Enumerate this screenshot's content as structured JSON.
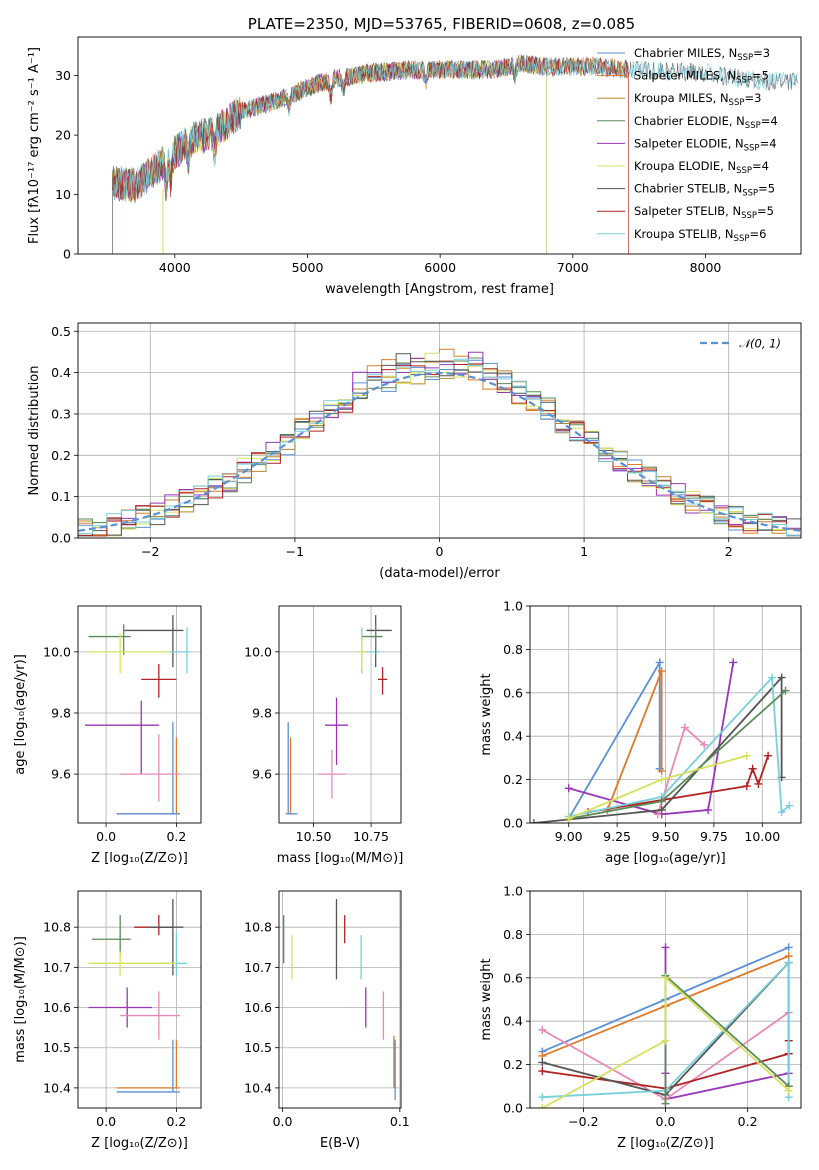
{
  "chart_data": [
    {
      "id": "spectrum",
      "type": "line",
      "title": "PLATE=2350, MJD=53765, FIBERID=0608, z=0.085",
      "xlabel": "wavelength [Angstrom, rest frame]",
      "ylabel": "Flux [fλ10⁻¹⁷ erg cm⁻² s⁻¹ A⁻¹]",
      "xlim": [
        3270,
        8720
      ],
      "ylim": [
        0,
        36.5
      ],
      "xticks": [
        4000,
        5000,
        6000,
        7000,
        8000
      ],
      "yticks": [
        0,
        10,
        20,
        30
      ],
      "grid": false,
      "legend_position": "upper-right",
      "range": [
        3530,
        7420
      ],
      "continuum": [
        [
          3530,
          12
        ],
        [
          3700,
          11.5
        ],
        [
          3950,
          16
        ],
        [
          4100,
          19
        ],
        [
          4300,
          20.5
        ],
        [
          4500,
          24
        ],
        [
          4800,
          26
        ],
        [
          5000,
          28
        ],
        [
          5200,
          29.5
        ],
        [
          5500,
          30.5
        ],
        [
          5800,
          31
        ],
        [
          6100,
          31
        ],
        [
          6400,
          31
        ],
        [
          6600,
          32
        ],
        [
          6800,
          31.5
        ],
        [
          7200,
          31.5
        ],
        [
          7420,
          31
        ],
        [
          8000,
          30.5
        ],
        [
          8400,
          29
        ]
      ],
      "absorption_features": [
        [
          3934,
          4
        ],
        [
          3968,
          4
        ],
        [
          4102,
          3
        ],
        [
          4300,
          3
        ],
        [
          4861,
          2
        ],
        [
          5175,
          3
        ],
        [
          5270,
          2
        ],
        [
          5890,
          2
        ],
        [
          6563,
          2
        ]
      ],
      "series": [
        {
          "name": "Chabrier MILES, N",
          "sub": "SSP",
          "suffix": "=3",
          "color": "#5b8fd6",
          "x_end": 7420
        },
        {
          "name": "Salpeter MILES, N",
          "sub": "SSP",
          "suffix": "=5",
          "color": "#e07a28",
          "x_end": 7420
        },
        {
          "name": "Kroupa MILES, N",
          "sub": "SSP",
          "suffix": "=3",
          "color": "#b8862b",
          "x_end": 7420
        },
        {
          "name": "Chabrier ELODIE, N",
          "sub": "SSP",
          "suffix": "=4",
          "color": "#5a8c5a",
          "x_end": 6800
        },
        {
          "name": "Salpeter ELODIE, N",
          "sub": "SSP",
          "suffix": "=4",
          "color": "#9a35b8",
          "x_end": 6800
        },
        {
          "name": "Kroupa ELODIE, N",
          "sub": "SSP",
          "suffix": "=4",
          "color": "#d8e060",
          "x_end": 6800
        },
        {
          "name": "Chabrier STELIB, N",
          "sub": "SSP",
          "suffix": "=5",
          "color": "#555555",
          "x_end": 8720
        },
        {
          "name": "Salpeter STELIB, N",
          "sub": "SSP",
          "suffix": "=5",
          "color": "#b22222",
          "x_end": 7420
        },
        {
          "name": "Kroupa STELIB, N",
          "sub": "SSP",
          "suffix": "=6",
          "color": "#78d0dc",
          "x_end": 8720
        }
      ]
    },
    {
      "id": "residuals",
      "type": "histogram",
      "xlabel": "(data-model)/error",
      "ylabel": "Normed distribution",
      "xlim": [
        -2.5,
        2.5
      ],
      "ylim": [
        0,
        0.52
      ],
      "xticks": [
        -2,
        -1,
        0,
        1,
        2
      ],
      "yticks": [
        0.0,
        0.1,
        0.2,
        0.3,
        0.4,
        0.5
      ],
      "grid": true,
      "bin_width": 0.1,
      "legend": {
        "label": "𝒩(0, 1)",
        "position": "upper-right",
        "color": "#5b8fd6"
      }
    },
    {
      "id": "age-vs-Z",
      "type": "scatter",
      "xlabel": "Z [log₁₀(Z/Z⊙)]",
      "ylabel": "age  [log₁₀(age/yr)]",
      "xlim": [
        -0.08,
        0.27
      ],
      "ylim": [
        9.44,
        10.15
      ],
      "xticks": [
        0.0,
        0.2
      ],
      "yticks": [
        9.6,
        9.8,
        10.0
      ],
      "grid": true,
      "points": [
        {
          "x": 0.2,
          "y": 9.47,
          "ex": [
            0.17,
            0.01
          ],
          "ey": [
            0.0,
            0.25
          ],
          "color": "#e07a28"
        },
        {
          "x": 0.19,
          "y": 9.47,
          "ex": [
            0.16,
            0.02
          ],
          "ey": [
            0.0,
            0.3
          ],
          "color": "#5b8fd6"
        },
        {
          "x": 0.1,
          "y": 9.76,
          "ex": [
            0.16,
            0.05
          ],
          "ey": [
            0.16,
            0.08
          ],
          "color": "#9a35b8"
        },
        {
          "x": 0.15,
          "y": 9.6,
          "ex": [
            0.11,
            0.06
          ],
          "ey": [
            0.09,
            0.13
          ],
          "color": "#e88ab8"
        },
        {
          "x": 0.15,
          "y": 9.91,
          "ex": [
            0.05,
            0.05
          ],
          "ey": [
            0.06,
            0.05
          ],
          "color": "#b22222"
        },
        {
          "x": 0.19,
          "y": 10.07,
          "ex": [
            0.14,
            0.03
          ],
          "ey": [
            0.12,
            0.05
          ],
          "color": "#555555"
        },
        {
          "x": 0.23,
          "y": 10.0,
          "ex": [
            0.05,
            0.01
          ],
          "ey": [
            0.07,
            0.08
          ],
          "color": "#78d0dc"
        },
        {
          "x": 0.05,
          "y": 10.05,
          "ex": [
            0.1,
            0.02
          ],
          "ey": [
            0.06,
            0.04
          ],
          "color": "#5a8c5a"
        },
        {
          "x": 0.04,
          "y": 10.0,
          "ex": [
            0.09,
            0.14
          ],
          "ey": [
            0.07,
            0.06
          ],
          "color": "#d8e060"
        }
      ]
    },
    {
      "id": "age-vs-mass",
      "type": "scatter",
      "xlabel": "mass [log₁₀(M/M⊙)]",
      "ylabel": "",
      "xlim": [
        10.35,
        10.88
      ],
      "ylim": [
        9.44,
        10.15
      ],
      "xticks": [
        10.5,
        10.75
      ],
      "yticks": [
        9.6,
        9.8,
        10.0
      ],
      "grid": true,
      "points": [
        {
          "x": 10.4,
          "y": 9.47,
          "ex": [
            0.0,
            0.01
          ],
          "ey": [
            0.0,
            0.25
          ],
          "color": "#e07a28"
        },
        {
          "x": 10.39,
          "y": 9.47,
          "ex": [
            0.01,
            0.04
          ],
          "ey": [
            0.0,
            0.3
          ],
          "color": "#5b8fd6"
        },
        {
          "x": 10.6,
          "y": 9.76,
          "ex": [
            0.05,
            0.05
          ],
          "ey": [
            0.13,
            0.09
          ],
          "color": "#9a35b8"
        },
        {
          "x": 10.58,
          "y": 9.6,
          "ex": [
            0.06,
            0.06
          ],
          "ey": [
            0.08,
            0.08
          ],
          "color": "#e88ab8"
        },
        {
          "x": 10.8,
          "y": 9.91,
          "ex": [
            0.02,
            0.02
          ],
          "ey": [
            0.05,
            0.04
          ],
          "color": "#b22222"
        },
        {
          "x": 10.77,
          "y": 10.07,
          "ex": [
            0.04,
            0.07
          ],
          "ey": [
            0.12,
            0.05
          ],
          "color": "#555555"
        },
        {
          "x": 10.71,
          "y": 10.0,
          "ex": [
            0.02,
            0.08
          ],
          "ey": [
            0.07,
            0.08
          ],
          "color": "#78d0dc"
        },
        {
          "x": 10.77,
          "y": 10.05,
          "ex": [
            0.06,
            0.03
          ],
          "ey": [
            0.06,
            0.04
          ],
          "color": "#5a8c5a"
        },
        {
          "x": 10.71,
          "y": 10.0,
          "ex": [
            0.02,
            0.02
          ],
          "ey": [
            0.06,
            0.05
          ],
          "color": "#d8e060"
        }
      ]
    },
    {
      "id": "weight-vs-age",
      "type": "line",
      "xlabel": "age  [log₁₀(age/yr)]",
      "ylabel": "mass weight",
      "xlim": [
        8.8,
        10.2
      ],
      "ylim": [
        0,
        1
      ],
      "xticks": [
        9.0,
        9.25,
        9.5,
        9.75,
        10.0
      ],
      "yticks": [
        0.0,
        0.2,
        0.4,
        0.6,
        0.8,
        1.0
      ],
      "grid": true,
      "series": [
        {
          "color": "#5b8fd6",
          "x": [
            9.0,
            9.47,
            9.47
          ],
          "y": [
            0.02,
            0.74,
            0.25
          ]
        },
        {
          "color": "#e07a28",
          "x": [
            9.2,
            9.48,
            9.48
          ],
          "y": [
            0.06,
            0.7,
            0.24
          ]
        },
        {
          "color": "#9a35b8",
          "x": [
            9.0,
            9.48,
            9.72,
            9.85
          ],
          "y": [
            0.16,
            0.04,
            0.06,
            0.74
          ]
        },
        {
          "color": "#e88ab8",
          "x": [
            9.46,
            9.6,
            9.7
          ],
          "y": [
            0.04,
            0.44,
            0.36
          ]
        },
        {
          "color": "#b22222",
          "x": [
            9.1,
            9.92,
            9.95,
            9.98,
            10.03
          ],
          "y": [
            0.05,
            0.17,
            0.25,
            0.18,
            0.31
          ]
        },
        {
          "color": "#555555",
          "x": [
            8.82,
            9.48,
            10.1,
            10.1
          ],
          "y": [
            0.0,
            0.06,
            0.67,
            0.21
          ]
        },
        {
          "color": "#78d0dc",
          "x": [
            9.0,
            9.48,
            10.05,
            10.1,
            10.14
          ],
          "y": [
            0.03,
            0.12,
            0.67,
            0.05,
            0.08
          ]
        },
        {
          "color": "#5a8c5a",
          "x": [
            9.0,
            9.48,
            10.12
          ],
          "y": [
            0.02,
            0.1,
            0.61
          ]
        },
        {
          "color": "#d8e060",
          "x": [
            9.0,
            9.48,
            9.92
          ],
          "y": [
            0.02,
            0.2,
            0.31
          ]
        }
      ]
    },
    {
      "id": "mass-vs-Z",
      "type": "scatter",
      "xlabel": "Z [log₁₀(Z/Z⊙)]",
      "ylabel": "mass [log₁₀(M/M⊙)]",
      "xlim": [
        -0.08,
        0.27
      ],
      "ylim": [
        10.35,
        10.89
      ],
      "xticks": [
        0.0,
        0.2
      ],
      "yticks": [
        10.4,
        10.5,
        10.6,
        10.7,
        10.8
      ],
      "grid": true,
      "points": [
        {
          "x": 0.2,
          "y": 10.4,
          "ex": [
            0.17,
            0.01
          ],
          "ey": [
            0.0,
            0.12
          ],
          "color": "#e07a28"
        },
        {
          "x": 0.19,
          "y": 10.39,
          "ex": [
            0.16,
            0.02
          ],
          "ey": [
            0.0,
            0.13
          ],
          "color": "#5b8fd6"
        },
        {
          "x": 0.06,
          "y": 10.6,
          "ex": [
            0.11,
            0.07
          ],
          "ey": [
            0.05,
            0.05
          ],
          "color": "#9a35b8"
        },
        {
          "x": 0.15,
          "y": 10.58,
          "ex": [
            0.11,
            0.06
          ],
          "ey": [
            0.06,
            0.06
          ],
          "color": "#e88ab8"
        },
        {
          "x": 0.15,
          "y": 10.8,
          "ex": [
            0.07,
            0.04
          ],
          "ey": [
            0.02,
            0.03
          ],
          "color": "#b22222"
        },
        {
          "x": 0.19,
          "y": 10.8,
          "ex": [
            0.07,
            0.03
          ],
          "ey": [
            0.12,
            0.07
          ],
          "color": "#555555"
        },
        {
          "x": 0.2,
          "y": 10.71,
          "ex": [
            0.05,
            0.03
          ],
          "ey": [
            0.03,
            0.08
          ],
          "color": "#78d0dc"
        },
        {
          "x": 0.04,
          "y": 10.77,
          "ex": [
            0.08,
            0.03
          ],
          "ey": [
            0.04,
            0.06
          ],
          "color": "#5a8c5a"
        },
        {
          "x": 0.04,
          "y": 10.71,
          "ex": [
            0.09,
            0.16
          ],
          "ey": [
            0.03,
            0.03
          ],
          "color": "#d8e060"
        }
      ]
    },
    {
      "id": "mass-vs-EBV",
      "type": "scatter",
      "xlabel": "E(B-V)",
      "ylabel": "",
      "xlim": [
        -0.003,
        0.101
      ],
      "ylim": [
        10.35,
        10.89
      ],
      "xticks": [
        0.0,
        0.1
      ],
      "yticks": [
        10.4,
        10.5,
        10.6,
        10.7,
        10.8
      ],
      "grid": true,
      "points": [
        {
          "x": 0.095,
          "y": 10.4,
          "ex": [
            0.0,
            0.0
          ],
          "ey": [
            0.0,
            0.13
          ],
          "color": "#e07a28"
        },
        {
          "x": 0.096,
          "y": 10.39,
          "ex": [
            0.0,
            0.0
          ],
          "ey": [
            0.02,
            0.13
          ],
          "color": "#5b8fd6"
        },
        {
          "x": 0.071,
          "y": 10.6,
          "ex": [
            0.0,
            0.0
          ],
          "ey": [
            0.05,
            0.05
          ],
          "color": "#9a35b8"
        },
        {
          "x": 0.086,
          "y": 10.58,
          "ex": [
            0.0,
            0.0
          ],
          "ey": [
            0.06,
            0.06
          ],
          "color": "#e88ab8"
        },
        {
          "x": 0.053,
          "y": 10.8,
          "ex": [
            0.0,
            0.0
          ],
          "ey": [
            0.04,
            0.03
          ],
          "color": "#b22222"
        },
        {
          "x": 0.046,
          "y": 10.78,
          "ex": [
            0.0,
            0.0
          ],
          "ey": [
            0.11,
            0.09
          ],
          "color": "#555555"
        },
        {
          "x": 0.067,
          "y": 10.72,
          "ex": [
            0.0,
            0.0
          ],
          "ey": [
            0.05,
            0.06
          ],
          "color": "#78d0dc"
        },
        {
          "x": 0.001,
          "y": 10.77,
          "ex": [
            0.0,
            0.0
          ],
          "ey": [
            0.06,
            0.06
          ],
          "color": "#5a8c5a"
        },
        {
          "x": 0.008,
          "y": 10.72,
          "ex": [
            0.0,
            0.0
          ],
          "ey": [
            0.05,
            0.06
          ],
          "color": "#d8e060"
        }
      ]
    },
    {
      "id": "weight-vs-Z",
      "type": "line",
      "xlabel": "Z [log₁₀(Z/Z⊙)]",
      "ylabel": "mass weight",
      "xlim": [
        -0.33,
        0.33
      ],
      "ylim": [
        0,
        1
      ],
      "xticks": [
        -0.2,
        0.0,
        0.2
      ],
      "yticks": [
        0.0,
        0.2,
        0.4,
        0.6,
        0.8,
        1.0
      ],
      "grid": true,
      "series": [
        {
          "color": "#5b8fd6",
          "x": [
            -0.3,
            0.0,
            0.3
          ],
          "y": [
            0.26,
            0.5,
            0.74
          ]
        },
        {
          "color": "#e07a28",
          "x": [
            -0.3,
            0.0,
            0.3
          ],
          "y": [
            0.24,
            0.47,
            0.7
          ]
        },
        {
          "color": "#9a35b8",
          "x": [
            0.0,
            0.0,
            0.0,
            0.3
          ],
          "y": [
            0.74,
            0.16,
            0.04,
            0.16
          ]
        },
        {
          "color": "#e88ab8",
          "x": [
            -0.3,
            0.0,
            0.3
          ],
          "y": [
            0.36,
            0.04,
            0.44
          ]
        },
        {
          "color": "#b22222",
          "x": [
            -0.3,
            0.0,
            0.3,
            0.3
          ],
          "y": [
            0.17,
            0.09,
            0.25,
            0.31
          ]
        },
        {
          "color": "#555555",
          "x": [
            -0.3,
            0.0,
            0.3,
            0.3
          ],
          "y": [
            0.21,
            0.06,
            0.67,
            0.1
          ]
        },
        {
          "color": "#78d0dc",
          "x": [
            -0.3,
            0.0,
            0.3,
            0.3
          ],
          "y": [
            0.05,
            0.08,
            0.67,
            0.05
          ]
        },
        {
          "color": "#5a8c5a",
          "x": [
            0.0,
            0.0,
            0.3
          ],
          "y": [
            0.02,
            0.61,
            0.1
          ]
        },
        {
          "color": "#d8e060",
          "x": [
            -0.3,
            0.0,
            0.0,
            0.3
          ],
          "y": [
            0.0,
            0.31,
            0.6,
            0.08
          ]
        }
      ]
    }
  ]
}
